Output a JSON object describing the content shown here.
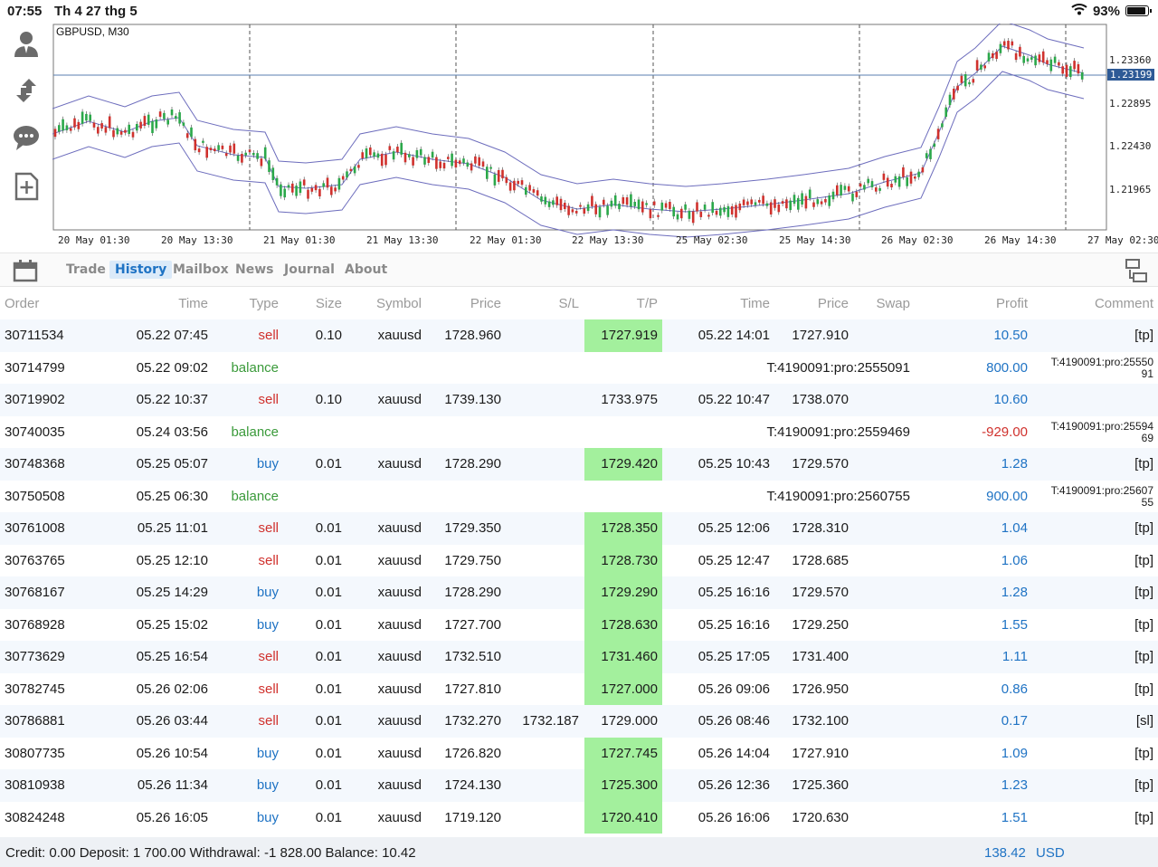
{
  "status_bar": {
    "time": "07:55",
    "date": "Th 4 27 thg 5",
    "battery_text": "93%",
    "battery_level": 0.93
  },
  "toolbar": {
    "icons": [
      "account-icon",
      "trade-arrows-icon",
      "chat-icon",
      "new-order-icon"
    ]
  },
  "chart": {
    "title": "GBPUSD, M30",
    "x_labels": [
      "20 May 01:30",
      "20 May 13:30",
      "21 May 01:30",
      "21 May 13:30",
      "22 May 01:30",
      "22 May 13:30",
      "25 May 02:30",
      "25 May 14:30",
      "26 May 02:30",
      "26 May 14:30",
      "27 May 02:30"
    ],
    "y_labels": [
      "1.23360",
      "1.22895",
      "1.22430",
      "1.21965"
    ],
    "current_price": "1.23199"
  },
  "tabs": [
    "Trade",
    "History",
    "Mailbox",
    "News",
    "Journal",
    "About"
  ],
  "active_tab": "History",
  "columns": [
    "Order",
    "Time",
    "Type",
    "Size",
    "Symbol",
    "Price",
    "S/L",
    "T/P",
    "Time",
    "Price",
    "Swap",
    "Profit",
    "Comment"
  ],
  "rows": [
    {
      "order": "30711534",
      "time": "05.22 07:45",
      "type": "sell",
      "size": "0.10",
      "symbol": "xauusd",
      "price": "1728.960",
      "sl": "",
      "tp": "1727.919",
      "close_time": "05.22 14:01",
      "close_price": "1727.910",
      "swap": "",
      "profit": "10.50",
      "comment": "[tp]"
    },
    {
      "order": "30714799",
      "time": "05.22 09:02",
      "type": "balance",
      "note": "T:4190091:pro:2555091",
      "profit": "800.00",
      "comment": "T:4190091:pro:25550\n91"
    },
    {
      "order": "30719902",
      "time": "05.22 10:37",
      "type": "sell",
      "size": "0.10",
      "symbol": "xauusd",
      "price": "1739.130",
      "sl": "",
      "tp": "1733.975",
      "close_time": "05.22 10:47",
      "close_price": "1738.070",
      "swap": "",
      "profit": "10.60",
      "comment": ""
    },
    {
      "order": "30740035",
      "time": "05.24 03:56",
      "type": "balance",
      "note": "T:4190091:pro:2559469",
      "profit": "-929.00",
      "comment": "T:4190091:pro:25594\n69"
    },
    {
      "order": "30748368",
      "time": "05.25 05:07",
      "type": "buy",
      "size": "0.01",
      "symbol": "xauusd",
      "price": "1728.290",
      "sl": "",
      "tp": "1729.420",
      "close_time": "05.25 10:43",
      "close_price": "1729.570",
      "swap": "",
      "profit": "1.28",
      "comment": "[tp]"
    },
    {
      "order": "30750508",
      "time": "05.25 06:30",
      "type": "balance",
      "note": "T:4190091:pro:2560755",
      "profit": "900.00",
      "comment": "T:4190091:pro:25607\n55"
    },
    {
      "order": "30761008",
      "time": "05.25 11:01",
      "type": "sell",
      "size": "0.01",
      "symbol": "xauusd",
      "price": "1729.350",
      "sl": "",
      "tp": "1728.350",
      "close_time": "05.25 12:06",
      "close_price": "1728.310",
      "swap": "",
      "profit": "1.04",
      "comment": "[tp]"
    },
    {
      "order": "30763765",
      "time": "05.25 12:10",
      "type": "sell",
      "size": "0.01",
      "symbol": "xauusd",
      "price": "1729.750",
      "sl": "",
      "tp": "1728.730",
      "close_time": "05.25 12:47",
      "close_price": "1728.685",
      "swap": "",
      "profit": "1.06",
      "comment": "[tp]"
    },
    {
      "order": "30768167",
      "time": "05.25 14:29",
      "type": "buy",
      "size": "0.01",
      "symbol": "xauusd",
      "price": "1728.290",
      "sl": "",
      "tp": "1729.290",
      "close_time": "05.25 16:16",
      "close_price": "1729.570",
      "swap": "",
      "profit": "1.28",
      "comment": "[tp]"
    },
    {
      "order": "30768928",
      "time": "05.25 15:02",
      "type": "buy",
      "size": "0.01",
      "symbol": "xauusd",
      "price": "1727.700",
      "sl": "",
      "tp": "1728.630",
      "close_time": "05.25 16:16",
      "close_price": "1729.250",
      "swap": "",
      "profit": "1.55",
      "comment": "[tp]"
    },
    {
      "order": "30773629",
      "time": "05.25 16:54",
      "type": "sell",
      "size": "0.01",
      "symbol": "xauusd",
      "price": "1732.510",
      "sl": "",
      "tp": "1731.460",
      "close_time": "05.25 17:05",
      "close_price": "1731.400",
      "swap": "",
      "profit": "1.11",
      "comment": "[tp]"
    },
    {
      "order": "30782745",
      "time": "05.26 02:06",
      "type": "sell",
      "size": "0.01",
      "symbol": "xauusd",
      "price": "1727.810",
      "sl": "",
      "tp": "1727.000",
      "close_time": "05.26 09:06",
      "close_price": "1726.950",
      "swap": "",
      "profit": "0.86",
      "comment": "[tp]"
    },
    {
      "order": "30786881",
      "time": "05.26 03:44",
      "type": "sell",
      "size": "0.01",
      "symbol": "xauusd",
      "price": "1732.270",
      "sl": "1732.187",
      "tp": "1729.000",
      "close_time": "05.26 08:46",
      "close_price": "1732.100",
      "swap": "",
      "profit": "0.17",
      "comment": "[sl]"
    },
    {
      "order": "30807735",
      "time": "05.26 10:54",
      "type": "buy",
      "size": "0.01",
      "symbol": "xauusd",
      "price": "1726.820",
      "sl": "",
      "tp": "1727.745",
      "close_time": "05.26 14:04",
      "close_price": "1727.910",
      "swap": "",
      "profit": "1.09",
      "comment": "[tp]"
    },
    {
      "order": "30810938",
      "time": "05.26 11:34",
      "type": "buy",
      "size": "0.01",
      "symbol": "xauusd",
      "price": "1724.130",
      "sl": "",
      "tp": "1725.300",
      "close_time": "05.26 12:36",
      "close_price": "1725.360",
      "swap": "",
      "profit": "1.23",
      "comment": "[tp]"
    },
    {
      "order": "30824248",
      "time": "05.26 16:05",
      "type": "buy",
      "size": "0.01",
      "symbol": "xauusd",
      "price": "1719.120",
      "sl": "",
      "tp": "1720.410",
      "close_time": "05.26 16:06",
      "close_price": "1720.630",
      "swap": "",
      "profit": "1.51",
      "comment": "[tp]"
    }
  ],
  "footer": {
    "summary": "Credit: 0.00 Deposit: 1 700.00 Withdrawal: -1 828.00 Balance: 10.42",
    "total": "138.42",
    "currency": "USD"
  },
  "colors": {
    "sell": "#d0312d",
    "buy": "#1f73c4",
    "balance": "#3a9a3a",
    "tp_highlight": "#a3f09d",
    "accent": "#1f73c4"
  }
}
